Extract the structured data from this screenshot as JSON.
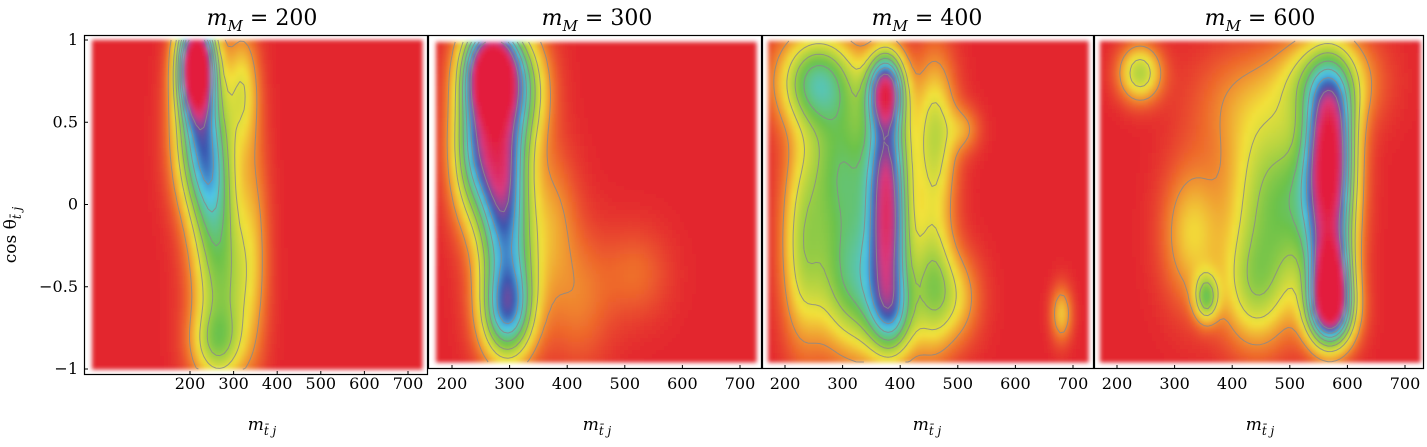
{
  "figure": {
    "y_axis_label": "cos θ_{t̄ j}",
    "y_axis_label_main": "cos θ",
    "y_axis_label_sub": "t̄ j",
    "x_axis_label_main": "m",
    "x_axis_label_sub": "t̄ j",
    "colors": {
      "background": "#e3262f",
      "orange": "#ee6a2c",
      "yellow": "#f2e23a",
      "green": "#6cc24a",
      "cyan": "#4fc6e8",
      "blue": "#3957b0",
      "magenta": "#d8397f",
      "peak": "#e31e3c",
      "contour": "#8a8a8a",
      "frame": "#000000"
    }
  },
  "chart_data": [
    {
      "type": "heatmap",
      "title_main": "m",
      "title_sub": "M",
      "title_rest": " = 200",
      "xlabel": "m_{t̄ j}",
      "ylabel": "cos θ_{t̄ j}",
      "xlim": [
        175,
        730
      ],
      "ylim": [
        -1,
        1
      ],
      "xticks": [
        200,
        300,
        400,
        500,
        600,
        700
      ],
      "yticks": [
        1,
        0.5,
        0,
        -0.5,
        -1
      ],
      "ytick_labels": [
        "1",
        "0.5",
        "0",
        "−0.5",
        "−1"
      ],
      "show_yticks": true,
      "features": [
        {
          "x": 215,
          "y": 0.85,
          "sx": 28,
          "sy": 0.2,
          "a": 1.15
        },
        {
          "x": 225,
          "y": 0.4,
          "sx": 40,
          "sy": 0.3,
          "a": 0.55
        },
        {
          "x": 255,
          "y": 0.05,
          "sx": 35,
          "sy": 0.3,
          "a": 0.3
        },
        {
          "x": 275,
          "y": -0.5,
          "sx": 45,
          "sy": 0.35,
          "a": 0.32
        },
        {
          "x": 260,
          "y": -0.85,
          "sx": 40,
          "sy": 0.15,
          "a": 0.22
        },
        {
          "x": 320,
          "y": 0.7,
          "sx": 25,
          "sy": 0.25,
          "a": 0.22
        },
        {
          "x": 345,
          "y": -0.2,
          "sx": 25,
          "sy": 0.5,
          "a": 0.12
        }
      ]
    },
    {
      "type": "heatmap",
      "title_main": "m",
      "title_sub": "M",
      "title_rest": " = 300",
      "xlabel": "m_{t̄ j}",
      "ylabel": "cos θ_{t̄ j}",
      "xlim": [
        175,
        730
      ],
      "ylim": [
        -1,
        1
      ],
      "xticks": [
        200,
        300,
        400,
        500,
        600,
        700
      ],
      "yticks": [
        1,
        0.5,
        0,
        -0.5,
        -1
      ],
      "show_yticks": false,
      "features": [
        {
          "x": 270,
          "y": 0.82,
          "sx": 32,
          "sy": 0.2,
          "a": 1.1
        },
        {
          "x": 275,
          "y": 0.4,
          "sx": 35,
          "sy": 0.3,
          "a": 0.65
        },
        {
          "x": 290,
          "y": 0.0,
          "sx": 30,
          "sy": 0.3,
          "a": 0.45
        },
        {
          "x": 300,
          "y": -0.45,
          "sx": 35,
          "sy": 0.3,
          "a": 0.35
        },
        {
          "x": 295,
          "y": -0.7,
          "sx": 30,
          "sy": 0.2,
          "a": 0.45
        },
        {
          "x": 230,
          "y": 0.3,
          "sx": 25,
          "sy": 0.3,
          "a": 0.25
        },
        {
          "x": 330,
          "y": 0.7,
          "sx": 30,
          "sy": 0.25,
          "a": 0.25
        },
        {
          "x": 375,
          "y": -0.1,
          "sx": 30,
          "sy": 0.3,
          "a": 0.12
        },
        {
          "x": 420,
          "y": -0.6,
          "sx": 40,
          "sy": 0.3,
          "a": 0.1
        },
        {
          "x": 520,
          "y": -0.45,
          "sx": 40,
          "sy": 0.2,
          "a": 0.08
        }
      ]
    },
    {
      "type": "heatmap",
      "title_main": "m",
      "title_sub": "M",
      "title_rest": " = 400",
      "xlabel": "m_{t̄ j}",
      "ylabel": "cos θ_{t̄ j}",
      "xlim": [
        175,
        730
      ],
      "ylim": [
        -1,
        1
      ],
      "xticks": [
        200,
        300,
        400,
        500,
        600,
        700
      ],
      "yticks": [
        1,
        0.5,
        0,
        -0.5,
        -1
      ],
      "show_yticks": false,
      "features": [
        {
          "x": 375,
          "y": 0.7,
          "sx": 22,
          "sy": 0.16,
          "a": 0.75
        },
        {
          "x": 378,
          "y": 0.25,
          "sx": 24,
          "sy": 0.3,
          "a": 0.6
        },
        {
          "x": 380,
          "y": -0.25,
          "sx": 24,
          "sy": 0.28,
          "a": 0.55
        },
        {
          "x": 385,
          "y": -0.7,
          "sx": 28,
          "sy": 0.2,
          "a": 0.45
        },
        {
          "x": 255,
          "y": 0.75,
          "sx": 45,
          "sy": 0.2,
          "a": 0.45
        },
        {
          "x": 300,
          "y": 0.2,
          "sx": 45,
          "sy": 0.35,
          "a": 0.42
        },
        {
          "x": 320,
          "y": -0.5,
          "sx": 45,
          "sy": 0.3,
          "a": 0.42
        },
        {
          "x": 230,
          "y": -0.3,
          "sx": 25,
          "sy": 0.4,
          "a": 0.25
        },
        {
          "x": 460,
          "y": 0.4,
          "sx": 25,
          "sy": 0.35,
          "a": 0.3
        },
        {
          "x": 455,
          "y": -0.5,
          "sx": 25,
          "sy": 0.3,
          "a": 0.3
        },
        {
          "x": 495,
          "y": -0.6,
          "sx": 30,
          "sy": 0.2,
          "a": 0.18
        },
        {
          "x": 680,
          "y": -0.7,
          "sx": 12,
          "sy": 0.12,
          "a": 0.2
        },
        {
          "x": 510,
          "y": 0.45,
          "sx": 20,
          "sy": 0.1,
          "a": 0.12
        }
      ]
    },
    {
      "type": "heatmap",
      "title_main": "m",
      "title_sub": "M",
      "title_rest": " = 600",
      "xlabel": "m_{t̄ j}",
      "ylabel": "cos θ_{t̄ j}",
      "xlim": [
        175,
        730
      ],
      "ylim": [
        -1,
        1
      ],
      "xticks": [
        200,
        300,
        400,
        500,
        600,
        700
      ],
      "yticks": [
        1,
        0.5,
        0,
        -0.5,
        -1
      ],
      "show_yticks": false,
      "features": [
        {
          "x": 570,
          "y": 0.4,
          "sx": 28,
          "sy": 0.28,
          "a": 0.75
        },
        {
          "x": 570,
          "y": -0.05,
          "sx": 28,
          "sy": 0.28,
          "a": 0.55
        },
        {
          "x": 570,
          "y": -0.5,
          "sx": 24,
          "sy": 0.2,
          "a": 0.85
        },
        {
          "x": 570,
          "y": -0.7,
          "sx": 28,
          "sy": 0.15,
          "a": 0.55
        },
        {
          "x": 560,
          "y": 0.75,
          "sx": 55,
          "sy": 0.2,
          "a": 0.32
        },
        {
          "x": 520,
          "y": 0.0,
          "sx": 45,
          "sy": 0.35,
          "a": 0.3
        },
        {
          "x": 450,
          "y": 0.0,
          "sx": 45,
          "sy": 0.4,
          "a": 0.25
        },
        {
          "x": 440,
          "y": -0.55,
          "sx": 40,
          "sy": 0.25,
          "a": 0.25
        },
        {
          "x": 355,
          "y": -0.6,
          "sx": 14,
          "sy": 0.1,
          "a": 0.35
        },
        {
          "x": 330,
          "y": -0.2,
          "sx": 35,
          "sy": 0.3,
          "a": 0.2
        },
        {
          "x": 240,
          "y": 0.8,
          "sx": 25,
          "sy": 0.12,
          "a": 0.32
        },
        {
          "x": 410,
          "y": 0.6,
          "sx": 60,
          "sy": 0.25,
          "a": 0.1
        }
      ]
    }
  ]
}
